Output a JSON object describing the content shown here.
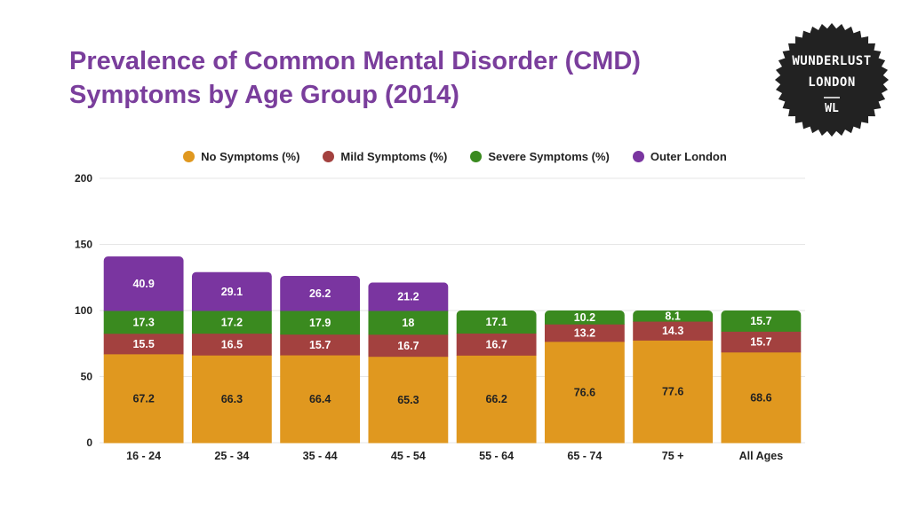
{
  "title": {
    "line1": "Prevalence of Common Mental Disorder (CMD)",
    "line2": "Symptoms by Age Group (2014)"
  },
  "logo": {
    "line1": "WUNDERLUST",
    "line2": "LONDON",
    "mark": "WL",
    "color": "#222222"
  },
  "colors": {
    "no_symptoms": "#e0981f",
    "mild": "#a3413f",
    "severe": "#3a8a1f",
    "outer_london": "#7a35a0",
    "title": "#7a3e9c"
  },
  "chart_data": {
    "type": "bar",
    "stacked": true,
    "categories": [
      "16 - 24",
      "25 - 34",
      "35 - 44",
      "45 - 54",
      "55 - 64",
      "65 - 74",
      "75 +",
      "All Ages"
    ],
    "series": [
      {
        "name": "No Symptoms (%)",
        "color": "#e0981f",
        "values": [
          67.2,
          66.3,
          66.4,
          65.3,
          66.2,
          76.6,
          77.6,
          68.6
        ]
      },
      {
        "name": "Mild Symptoms (%)",
        "color": "#a3413f",
        "values": [
          15.5,
          16.5,
          15.7,
          16.7,
          16.7,
          13.2,
          14.3,
          15.7
        ]
      },
      {
        "name": "Severe Symptoms (%)",
        "color": "#3a8a1f",
        "values": [
          17.3,
          17.2,
          17.9,
          18.0,
          17.1,
          10.2,
          8.1,
          15.7
        ]
      },
      {
        "name": "Outer London",
        "color": "#7a35a0",
        "values": [
          40.9,
          29.1,
          26.2,
          21.2,
          null,
          null,
          null,
          null
        ]
      }
    ],
    "ylim": [
      0,
      200
    ],
    "yticks": [
      0,
      50,
      100,
      150,
      200
    ],
    "grid": true,
    "legend_position": "top"
  }
}
